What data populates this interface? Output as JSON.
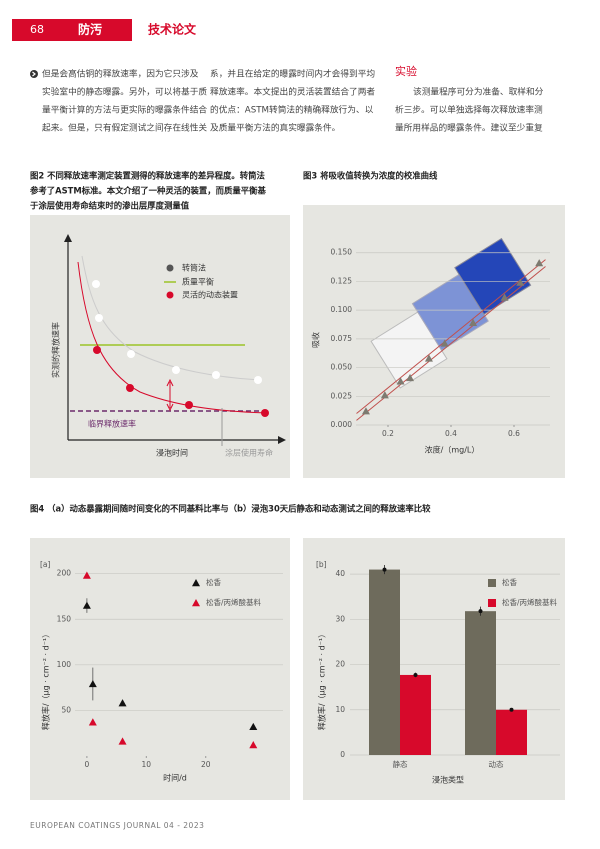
{
  "header": {
    "page": "68",
    "section": "防汚",
    "category": "技术论文"
  },
  "body": {
    "col1": [
      "但是会高估铜的释放速率，因为它只涉及",
      "实验室中的静态曝露。另外，可以将基于质",
      "量平衡计算的方法与更实际的曝露条件结合",
      "起来。但是，只有假定测试之间存在线性关"
    ],
    "col2": [
      "系，并且在给定的曝露时间内才会得到平均",
      "释放速率。本文提出的灵活装置结合了两者",
      "的优点：ASTM转筒法的精确释放行为、以",
      "及质量平衡方法的真实曝露条件。"
    ],
    "col3_heading": "实验",
    "col3": [
      "该测量程序可分为准备、取样和分",
      "析三步。可以单独选择每次释放速率测",
      "量所用样品的曝露条件。建议至少重复"
    ]
  },
  "figure2": {
    "caption": [
      "图2 不同释放速率测定装置测得的释放速率的差异程度。转筒法",
      "参考了ASTM标准。本文介绍了一种灵活的装置，而质量平衡基",
      "于涂层使用寿命结束时的渗出层厚度测量值"
    ],
    "legend": [
      "转筒法",
      "质量平衡",
      "灵活的动态装置"
    ],
    "y_label": "实测的释放速率",
    "x_label": "浸泡时间",
    "threshold_label": "临界释放速率",
    "end_label": "涂层使用寿命"
  },
  "figure3_caption": "图3 将吸收值转换为浓度的校准曲线",
  "figure4_caption": "图4 （a）动态暴露期间随时间变化的不同基料比率与（b）浸泡30天后静态和动态测试之间的释放速率比较",
  "chart_data": [
    {
      "type": "scatter",
      "marker": "triangle",
      "color": "#7d7a70",
      "x": [
        0.13,
        0.19,
        0.24,
        0.27,
        0.33,
        0.38,
        0.47,
        0.57,
        0.62,
        0.68
      ],
      "values": [
        0.012,
        0.026,
        0.038,
        0.041,
        0.058,
        0.071,
        0.089,
        0.111,
        0.124,
        0.141
      ],
      "fit_lines": [
        {
          "color": "#c0504d",
          "x": [
            0.1,
            0.7
          ],
          "values": [
            0.01,
            0.144
          ]
        },
        {
          "color": "#c0504d",
          "x": [
            0.1,
            0.7
          ],
          "values": [
            0.004,
            0.138
          ]
        }
      ],
      "xlim": [
        0.1,
        0.7
      ],
      "ylim": [
        0,
        0.155
      ],
      "xticks": [
        0.2,
        0.4,
        0.6
      ],
      "yticks": [
        {
          "value": 0,
          "label": "0.000"
        },
        0.025,
        {
          "value": 0.05,
          "label": "0.050"
        },
        0.075,
        {
          "value": 0.1,
          "label": "0.100"
        },
        0.125,
        {
          "value": 0.15,
          "label": "0.150"
        }
      ],
      "grid": true,
      "x_label": "浓度/（mg/L）",
      "y_label": "吸收"
    },
    {
      "type": "scatter",
      "marker": "triangle",
      "panel": "[a]",
      "x": [
        0,
        1,
        6,
        28
      ],
      "series": [
        {
          "name": "松香",
          "color": "#111111",
          "values": [
            165,
            79,
            58,
            32
          ],
          "errors": [
            8,
            18,
            0,
            0
          ]
        },
        {
          "name": "松香/丙烯酸基料",
          "color": "#d7092b",
          "values": [
            198,
            37,
            16,
            12
          ]
        }
      ],
      "xlim": [
        -2,
        33
      ],
      "ylim": [
        0,
        215
      ],
      "xticks": [
        0,
        10,
        20
      ],
      "yticks": [
        50,
        100,
        150,
        200
      ],
      "grid": true,
      "x_label": "时间/d",
      "y_label": "释放率/（μg · cm⁻² · d⁻¹）"
    },
    {
      "type": "bar",
      "panel": "[b]",
      "categories": [
        "静态",
        "动态"
      ],
      "series": [
        {
          "name": "松香",
          "color": "#6e6b5c",
          "values": [
            41,
            31.8
          ],
          "errors": [
            1,
            1
          ]
        },
        {
          "name": "松香/丙烯酸基料",
          "color": "#d7092b",
          "values": [
            17.7,
            10
          ],
          "errors": [
            0.5,
            0.3
          ]
        }
      ],
      "ylim": [
        0,
        44
      ],
      "yticks": [
        0,
        10,
        20,
        30,
        40
      ],
      "grid": true,
      "x_label": "浸泡类型",
      "y_label": "释放率/（μg · cm⁻² · d⁻¹）"
    }
  ],
  "footer": "EUROPEAN COATINGS JOURNAL 04 - 2023"
}
